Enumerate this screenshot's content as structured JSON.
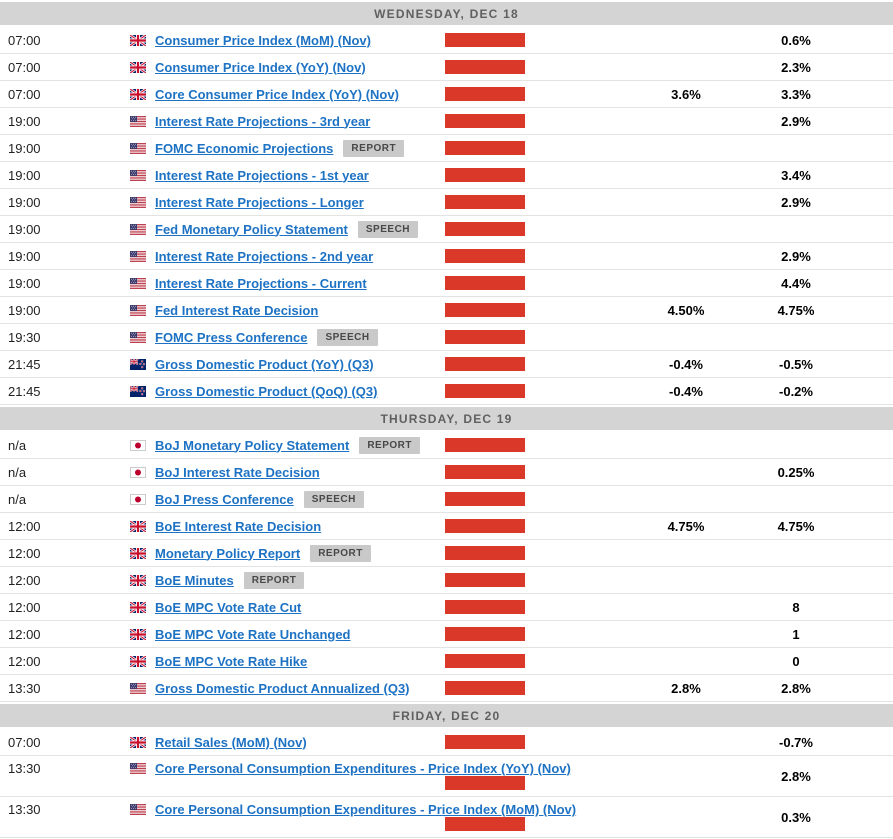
{
  "calendar": {
    "impact_color": "#da392a",
    "link_color": "#1d72c4",
    "header_bg": "#d4d4d4",
    "icons": {
      "gb": "flag-gb-icon",
      "us": "flag-us-icon",
      "nz": "flag-nz-icon",
      "jp": "flag-jp-icon"
    },
    "days": [
      {
        "label": "WEDNESDAY, DEC 18",
        "events": [
          {
            "time": "07:00",
            "country": "gb",
            "title": "Consumer Price Index (MoM) (Nov)",
            "badge": "",
            "forecast": "",
            "previous": "0.6%",
            "wrap": false
          },
          {
            "time": "07:00",
            "country": "gb",
            "title": "Consumer Price Index (YoY) (Nov)",
            "badge": "",
            "forecast": "",
            "previous": "2.3%",
            "wrap": false
          },
          {
            "time": "07:00",
            "country": "gb",
            "title": "Core Consumer Price Index (YoY) (Nov)",
            "badge": "",
            "forecast": "3.6%",
            "previous": "3.3%",
            "wrap": false
          },
          {
            "time": "19:00",
            "country": "us",
            "title": "Interest Rate Projections - 3rd year",
            "badge": "",
            "forecast": "",
            "previous": "2.9%",
            "wrap": false
          },
          {
            "time": "19:00",
            "country": "us",
            "title": "FOMC Economic Projections",
            "badge": "REPORT",
            "forecast": "",
            "previous": "",
            "wrap": false
          },
          {
            "time": "19:00",
            "country": "us",
            "title": "Interest Rate Projections - 1st year",
            "badge": "",
            "forecast": "",
            "previous": "3.4%",
            "wrap": false
          },
          {
            "time": "19:00",
            "country": "us",
            "title": "Interest Rate Projections - Longer",
            "badge": "",
            "forecast": "",
            "previous": "2.9%",
            "wrap": false
          },
          {
            "time": "19:00",
            "country": "us",
            "title": "Fed Monetary Policy Statement",
            "badge": "SPEECH",
            "forecast": "",
            "previous": "",
            "wrap": false
          },
          {
            "time": "19:00",
            "country": "us",
            "title": "Interest Rate Projections - 2nd year",
            "badge": "",
            "forecast": "",
            "previous": "2.9%",
            "wrap": false
          },
          {
            "time": "19:00",
            "country": "us",
            "title": "Interest Rate Projections - Current",
            "badge": "",
            "forecast": "",
            "previous": "4.4%",
            "wrap": false
          },
          {
            "time": "19:00",
            "country": "us",
            "title": "Fed Interest Rate Decision",
            "badge": "",
            "forecast": "4.50%",
            "previous": "4.75%",
            "wrap": false
          },
          {
            "time": "19:30",
            "country": "us",
            "title": "FOMC Press Conference",
            "badge": "SPEECH",
            "forecast": "",
            "previous": "",
            "wrap": false
          },
          {
            "time": "21:45",
            "country": "nz",
            "title": "Gross Domestic Product (YoY) (Q3)",
            "badge": "",
            "forecast": "-0.4%",
            "previous": "-0.5%",
            "wrap": false
          },
          {
            "time": "21:45",
            "country": "nz",
            "title": "Gross Domestic Product (QoQ) (Q3)",
            "badge": "",
            "forecast": "-0.4%",
            "previous": "-0.2%",
            "wrap": false
          }
        ]
      },
      {
        "label": "THURSDAY, DEC 19",
        "events": [
          {
            "time": "n/a",
            "country": "jp",
            "title": "BoJ Monetary Policy Statement",
            "badge": "REPORT",
            "forecast": "",
            "previous": "",
            "wrap": false
          },
          {
            "time": "n/a",
            "country": "jp",
            "title": "BoJ Interest Rate Decision",
            "badge": "",
            "forecast": "",
            "previous": "0.25%",
            "wrap": false
          },
          {
            "time": "n/a",
            "country": "jp",
            "title": "BoJ Press Conference",
            "badge": "SPEECH",
            "forecast": "",
            "previous": "",
            "wrap": false
          },
          {
            "time": "12:00",
            "country": "gb",
            "title": "BoE Interest Rate Decision",
            "badge": "",
            "forecast": "4.75%",
            "previous": "4.75%",
            "wrap": false
          },
          {
            "time": "12:00",
            "country": "gb",
            "title": "Monetary Policy Report",
            "badge": "REPORT",
            "forecast": "",
            "previous": "",
            "wrap": false
          },
          {
            "time": "12:00",
            "country": "gb",
            "title": "BoE Minutes",
            "badge": "REPORT",
            "forecast": "",
            "previous": "",
            "wrap": false
          },
          {
            "time": "12:00",
            "country": "gb",
            "title": "BoE MPC Vote Rate Cut",
            "badge": "",
            "forecast": "",
            "previous": "8",
            "wrap": false
          },
          {
            "time": "12:00",
            "country": "gb",
            "title": "BoE MPC Vote Rate Unchanged",
            "badge": "",
            "forecast": "",
            "previous": "1",
            "wrap": false
          },
          {
            "time": "12:00",
            "country": "gb",
            "title": "BoE MPC Vote Rate Hike",
            "badge": "",
            "forecast": "",
            "previous": "0",
            "wrap": false
          },
          {
            "time": "13:30",
            "country": "us",
            "title": "Gross Domestic Product Annualized (Q3)",
            "badge": "",
            "forecast": "2.8%",
            "previous": "2.8%",
            "wrap": false
          }
        ]
      },
      {
        "label": "FRIDAY, DEC 20",
        "events": [
          {
            "time": "07:00",
            "country": "gb",
            "title": "Retail Sales (MoM) (Nov)",
            "badge": "",
            "forecast": "",
            "previous": "-0.7%",
            "wrap": false
          },
          {
            "time": "13:30",
            "country": "us",
            "title": "Core Personal Consumption Expenditures - Price Index (YoY) (Nov)",
            "badge": "",
            "forecast": "",
            "previous": "2.8%",
            "wrap": true
          },
          {
            "time": "13:30",
            "country": "us",
            "title": "Core Personal Consumption Expenditures - Price Index (MoM) (Nov)",
            "badge": "",
            "forecast": "",
            "previous": "0.3%",
            "wrap": true
          }
        ]
      }
    ]
  }
}
